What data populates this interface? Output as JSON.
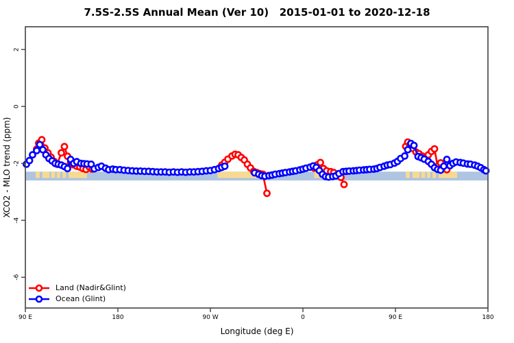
{
  "title": "7.5S-2.5S Annual Mean (Ver 10)   2015-01-01 to 2020-12-18",
  "legend": {
    "items": [
      {
        "label": "Land (Nadir&Glint)",
        "color": "#ff0000"
      },
      {
        "label": "Ocean (Glint)",
        "color": "#0000ff"
      }
    ]
  },
  "chart_data": {
    "type": "line",
    "title": "7.5S-2.5S Annual Mean (Ver 10)   2015-01-01 to 2020-12-18",
    "xlabel": "Longitude (deg E)",
    "ylabel": "XCO2 - MLO trend (ppm)",
    "xlim": [
      90,
      540
    ],
    "ylim": [
      -7.08,
      2.8
    ],
    "grid": false,
    "legend_position": "bottom-left",
    "x_ticks": [
      {
        "t": 90,
        "label": "90 E"
      },
      {
        "t": 180,
        "label": "180"
      },
      {
        "t": 270,
        "label": "90 W"
      },
      {
        "t": 360,
        "label": "0"
      },
      {
        "t": 450,
        "label": "90 E"
      },
      {
        "t": 540,
        "label": "180"
      }
    ],
    "y_ticks": [
      2,
      0,
      -2,
      -4,
      -6
    ],
    "axis_color": "#404040",
    "series": [
      {
        "name": "Land (Nadir&Glint)",
        "color": "#ff0000",
        "segments": [
          [
            [
              101,
              -1.5
            ],
            [
              103,
              -1.29
            ],
            [
              106,
              -1.17
            ],
            [
              109,
              -1.46
            ],
            [
              112,
              -1.63
            ],
            [
              115,
              -1.78
            ],
            [
              118,
              -1.93
            ],
            [
              121,
              -2.03
            ],
            [
              125,
              -1.63
            ],
            [
              128,
              -1.41
            ],
            [
              131,
              -1.75
            ],
            [
              134,
              -1.97
            ],
            [
              137,
              -2.05
            ],
            [
              140,
              -2.1
            ],
            [
              143,
              -2.13
            ],
            [
              146,
              -2.18
            ],
            [
              149,
              -2.21
            ],
            [
              152,
              -2.12
            ],
            [
              155,
              -2.2
            ]
          ],
          [
            [
              281,
              -2.06
            ],
            [
              284,
              -1.96
            ],
            [
              287,
              -1.85
            ],
            [
              291,
              -1.74
            ],
            [
              294,
              -1.68
            ],
            [
              297,
              -1.7
            ],
            [
              300,
              -1.79
            ],
            [
              303,
              -1.88
            ],
            [
              306,
              -2.03
            ],
            [
              309,
              -2.16
            ],
            [
              312,
              -2.28
            ],
            [
              315,
              -2.32
            ],
            [
              318,
              -2.36
            ],
            [
              321,
              -2.38
            ],
            [
              325,
              -3.05
            ]
          ],
          [
            [
              371,
              -2.17
            ],
            [
              374,
              -2.05
            ],
            [
              377,
              -1.97
            ],
            [
              380,
              -2.18
            ],
            [
              383,
              -2.26
            ],
            [
              387,
              -2.29
            ],
            [
              390,
              -2.32
            ],
            [
              393,
              -2.41
            ],
            [
              397,
              -2.49
            ],
            [
              400,
              -2.74
            ]
          ],
          [
            [
              460,
              -1.4
            ],
            [
              462,
              -1.25
            ],
            [
              464,
              -1.35
            ],
            [
              467,
              -1.48
            ],
            [
              470,
              -1.6
            ],
            [
              473,
              -1.66
            ],
            [
              476,
              -1.74
            ],
            [
              479,
              -1.82
            ],
            [
              482,
              -1.7
            ],
            [
              485,
              -1.58
            ],
            [
              488,
              -1.49
            ],
            [
              491,
              -2.1
            ],
            [
              494,
              -1.98
            ],
            [
              497,
              -2.17
            ],
            [
              500,
              -2.22
            ]
          ]
        ]
      },
      {
        "name": "Ocean (Glint)",
        "color": "#0000ff",
        "segments": [
          [
            [
              91,
              -2.03
            ],
            [
              94,
              -1.9
            ],
            [
              97,
              -1.7
            ],
            [
              101,
              -1.55
            ],
            [
              104,
              -1.34
            ],
            [
              107,
              -1.52
            ],
            [
              110,
              -1.7
            ],
            [
              113,
              -1.83
            ],
            [
              116,
              -1.91
            ],
            [
              119,
              -2.0
            ],
            [
              122,
              -2.03
            ],
            [
              125,
              -2.06
            ],
            [
              128,
              -2.11
            ],
            [
              131,
              -2.18
            ],
            [
              134,
              -1.86
            ],
            [
              137,
              -2.0
            ],
            [
              140,
              -1.94
            ],
            [
              144,
              -2.0
            ],
            [
              147,
              -2.01
            ],
            [
              150,
              -2.02
            ],
            [
              154,
              -2.03
            ],
            [
              157,
              -2.19
            ],
            [
              161,
              -2.14
            ],
            [
              164,
              -2.1
            ],
            [
              168,
              -2.17
            ],
            [
              171,
              -2.22
            ],
            [
              175,
              -2.2
            ],
            [
              178,
              -2.22
            ],
            [
              182,
              -2.22
            ],
            [
              186,
              -2.24
            ],
            [
              190,
              -2.25
            ],
            [
              194,
              -2.26
            ],
            [
              198,
              -2.27
            ],
            [
              202,
              -2.27
            ],
            [
              206,
              -2.28
            ],
            [
              210,
              -2.28
            ],
            [
              214,
              -2.29
            ],
            [
              218,
              -2.3
            ],
            [
              222,
              -2.3
            ],
            [
              226,
              -2.3
            ],
            [
              230,
              -2.31
            ],
            [
              234,
              -2.3
            ],
            [
              238,
              -2.31
            ],
            [
              242,
              -2.3
            ],
            [
              246,
              -2.31
            ],
            [
              250,
              -2.3
            ],
            [
              254,
              -2.3
            ],
            [
              258,
              -2.29
            ],
            [
              262,
              -2.28
            ],
            [
              266,
              -2.26
            ],
            [
              270,
              -2.25
            ],
            [
              274,
              -2.22
            ],
            [
              278,
              -2.18
            ],
            [
              281,
              -2.14
            ],
            [
              284,
              -2.1
            ]
          ],
          [
            [
              313,
              -2.33
            ],
            [
              317,
              -2.38
            ],
            [
              320,
              -2.43
            ],
            [
              323,
              -2.45
            ],
            [
              327,
              -2.43
            ],
            [
              330,
              -2.41
            ],
            [
              333,
              -2.38
            ],
            [
              337,
              -2.36
            ],
            [
              340,
              -2.34
            ],
            [
              343,
              -2.32
            ],
            [
              347,
              -2.3
            ],
            [
              350,
              -2.28
            ],
            [
              353,
              -2.26
            ],
            [
              357,
              -2.23
            ],
            [
              360,
              -2.2
            ],
            [
              363,
              -2.17
            ],
            [
              367,
              -2.13
            ],
            [
              370,
              -2.09
            ],
            [
              373,
              -2.14
            ],
            [
              376,
              -2.25
            ],
            [
              379,
              -2.38
            ],
            [
              382,
              -2.46
            ],
            [
              385,
              -2.48
            ],
            [
              389,
              -2.46
            ],
            [
              392,
              -2.44
            ],
            [
              395,
              -2.36
            ],
            [
              399,
              -2.29
            ],
            [
              402,
              -2.28
            ],
            [
              405,
              -2.27
            ],
            [
              409,
              -2.26
            ],
            [
              412,
              -2.25
            ],
            [
              415,
              -2.24
            ],
            [
              419,
              -2.23
            ],
            [
              422,
              -2.22
            ],
            [
              425,
              -2.21
            ],
            [
              429,
              -2.2
            ],
            [
              432,
              -2.18
            ],
            [
              435,
              -2.14
            ],
            [
              439,
              -2.1
            ],
            [
              442,
              -2.06
            ],
            [
              445,
              -2.04
            ],
            [
              449,
              -1.99
            ],
            [
              452,
              -1.93
            ],
            [
              455,
              -1.83
            ],
            [
              459,
              -1.74
            ],
            [
              462,
              -1.52
            ],
            [
              465,
              -1.3
            ],
            [
              468,
              -1.37
            ],
            [
              472,
              -1.76
            ],
            [
              475,
              -1.8
            ],
            [
              478,
              -1.85
            ],
            [
              482,
              -1.93
            ],
            [
              485,
              -2.03
            ],
            [
              488,
              -2.15
            ],
            [
              491,
              -2.21
            ],
            [
              494,
              -2.24
            ],
            [
              497,
              -2.1
            ],
            [
              500,
              -1.86
            ],
            [
              503,
              -2.08
            ],
            [
              506,
              -2.0
            ],
            [
              509,
              -1.95
            ],
            [
              513,
              -1.97
            ],
            [
              516,
              -1.99
            ],
            [
              520,
              -2.02
            ],
            [
              523,
              -2.03
            ],
            [
              527,
              -2.06
            ],
            [
              530,
              -2.1
            ],
            [
              533,
              -2.15
            ],
            [
              536,
              -2.22
            ],
            [
              538,
              -2.26
            ]
          ]
        ]
      }
    ],
    "map_band": {
      "description": "land/ocean strip along latitude band",
      "y_top": -2.29,
      "y_bottom": -2.6,
      "ocean_color": "#aec4e1",
      "land_color": "#f7da92",
      "land_segments": [
        [
          100,
          104
        ],
        [
          106.5,
          113.5
        ],
        [
          115,
          119
        ],
        [
          120.5,
          124
        ],
        [
          126,
          129.5
        ],
        [
          132,
          150
        ],
        [
          277,
          327
        ],
        [
          371,
          400
        ],
        [
          460,
          464
        ],
        [
          466.5,
          473.5
        ],
        [
          475,
          479
        ],
        [
          480.5,
          484
        ],
        [
          486,
          489.5
        ],
        [
          492,
          510
        ]
      ]
    }
  }
}
